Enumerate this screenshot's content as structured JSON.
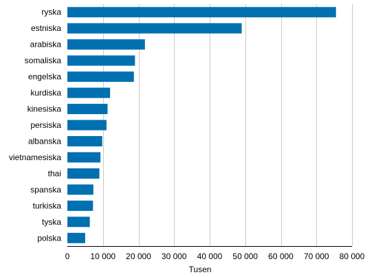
{
  "chart_data": {
    "type": "bar",
    "orientation": "horizontal",
    "categories": [
      "ryska",
      "estniska",
      "arabiska",
      "somaliska",
      "engelska",
      "kurdiska",
      "kinesiska",
      "persiska",
      "albanska",
      "vietnamesiska",
      "thai",
      "spanska",
      "turkiska",
      "tyska",
      "polska"
    ],
    "values": [
      75500,
      49000,
      21800,
      19000,
      18700,
      12000,
      11300,
      11000,
      9800,
      9300,
      9000,
      7300,
      7200,
      6300,
      5000
    ],
    "xlabel": "Tusen",
    "ylabel": "",
    "xlim": [
      0,
      80000
    ],
    "xticks": [
      0,
      10000,
      20000,
      30000,
      40000,
      50000,
      60000,
      70000,
      80000
    ],
    "xtick_labels": [
      "0",
      "10 000",
      "20 000",
      "30 000",
      "40 000",
      "50 000",
      "60 000",
      "70 000",
      "80 000"
    ],
    "grid": "vertical",
    "bar_color": "#0070b0"
  }
}
